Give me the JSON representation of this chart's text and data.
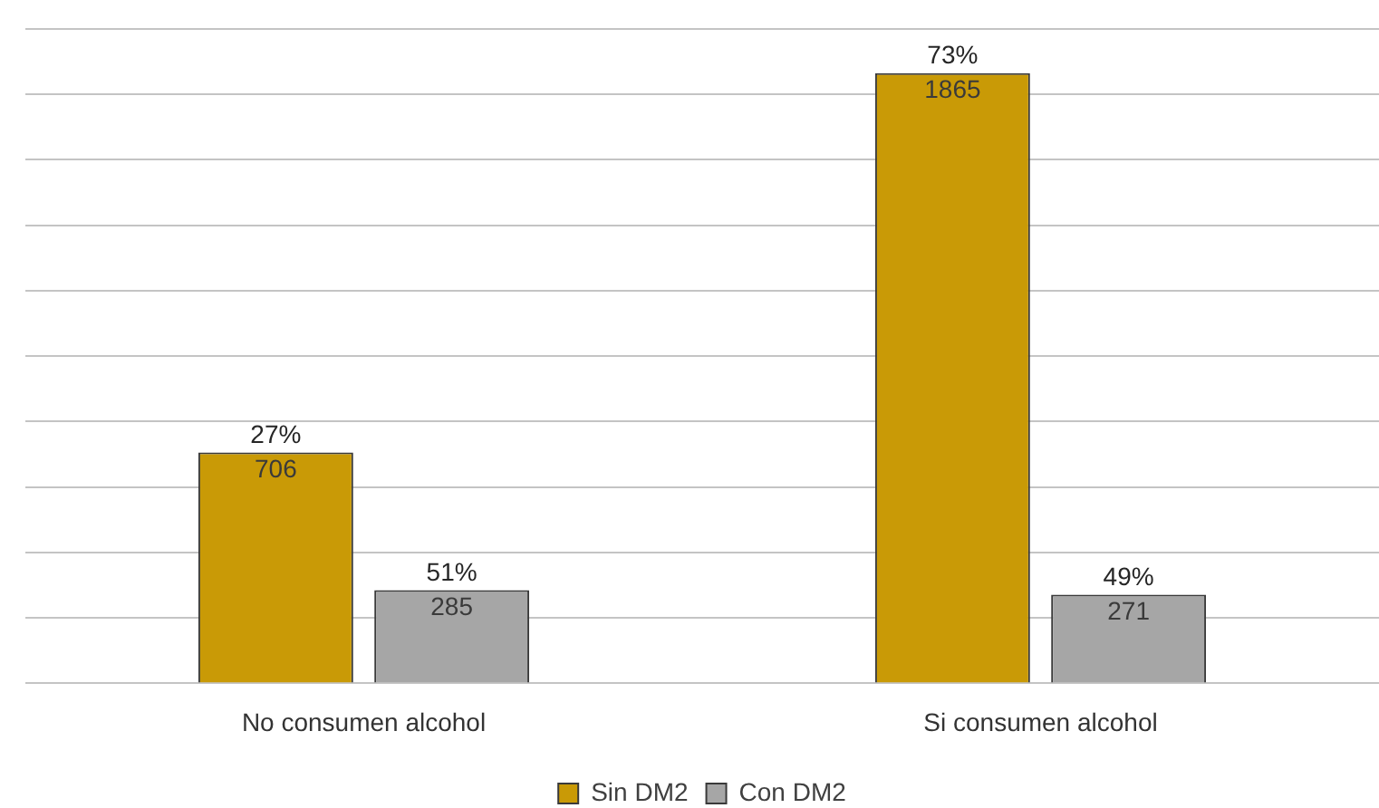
{
  "chart_data": {
    "type": "bar",
    "categories": [
      "No consumen alcohol",
      "Si consumen alcohol"
    ],
    "series": [
      {
        "name": "Sin DM2",
        "color": "#c99a06",
        "values": [
          706,
          1865
        ]
      },
      {
        "name": "Con DM2",
        "color": "#a6a6a6",
        "values": [
          285,
          271
        ]
      }
    ],
    "ylim": [
      0,
      2000
    ],
    "yticks": [
      {
        "value": 0,
        "label": null
      },
      {
        "value": 200,
        "label": null
      },
      {
        "value": 400,
        "label": null
      },
      {
        "value": 600,
        "label": null
      },
      {
        "value": 800,
        "label": null
      },
      {
        "value": 1000,
        "label": null
      },
      {
        "value": 1200,
        "label": null
      },
      {
        "value": 1400,
        "label": null
      },
      {
        "value": 1600,
        "label": null
      },
      {
        "value": 1800,
        "label": null
      },
      {
        "value": 2000,
        "label": null
      }
    ],
    "grid": "y",
    "legend": "bottom",
    "tick_labels": "x",
    "data_labels": true,
    "annotations": [
      "27%",
      "51%",
      "73%",
      "49%"
    ]
  }
}
